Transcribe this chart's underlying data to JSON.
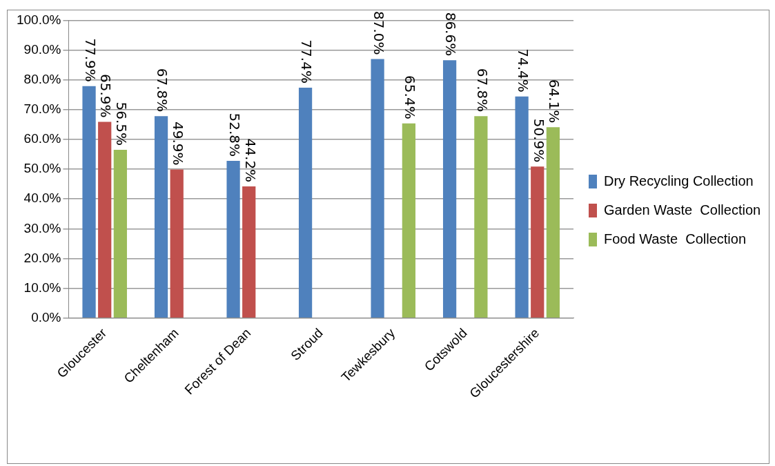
{
  "chart_data": {
    "type": "bar",
    "categories": [
      "Gloucester",
      "Cheltenham",
      "Forest of Dean",
      "Stroud",
      "Tewkesbury",
      "Cotswold",
      "Gloucestershire"
    ],
    "series": [
      {
        "name": "Dry Recycling Collection",
        "color": "#4f81bd",
        "values": [
          77.9,
          67.8,
          52.8,
          77.4,
          87.0,
          86.6,
          74.4
        ],
        "value_labels": [
          "77.9%",
          "67.8%",
          "52.8%",
          "77.4%",
          "87.0%",
          "86.6%",
          "74.4%"
        ]
      },
      {
        "name": "Garden Waste  Collection",
        "color": "#c0504d",
        "values": [
          65.9,
          49.9,
          44.2,
          null,
          null,
          null,
          50.9
        ],
        "value_labels": [
          "65.9%",
          "49.9%",
          "44.2%",
          null,
          null,
          null,
          "50.9%"
        ]
      },
      {
        "name": "Food Waste  Collection",
        "color": "#9bbb59",
        "values": [
          56.5,
          null,
          null,
          null,
          65.4,
          67.8,
          64.1
        ],
        "value_labels": [
          "56.5%",
          null,
          null,
          null,
          "65.4%",
          "67.8%",
          "64.1%"
        ]
      }
    ],
    "ylim": [
      0,
      100
    ],
    "yticks": [
      {
        "value": 0,
        "label": "0.0%"
      },
      {
        "value": 10,
        "label": "10.0%"
      },
      {
        "value": 20,
        "label": "20.0%"
      },
      {
        "value": 30,
        "label": "30.0%"
      },
      {
        "value": 40,
        "label": "40.0%"
      },
      {
        "value": 50,
        "label": "50.0%"
      },
      {
        "value": 60,
        "label": "60.0%"
      },
      {
        "value": 70,
        "label": "70.0%"
      },
      {
        "value": 80,
        "label": "80.0%"
      },
      {
        "value": 90,
        "label": "90.0%"
      },
      {
        "value": 100,
        "label": "100.0%"
      }
    ],
    "grid": "y",
    "legend": "right"
  }
}
